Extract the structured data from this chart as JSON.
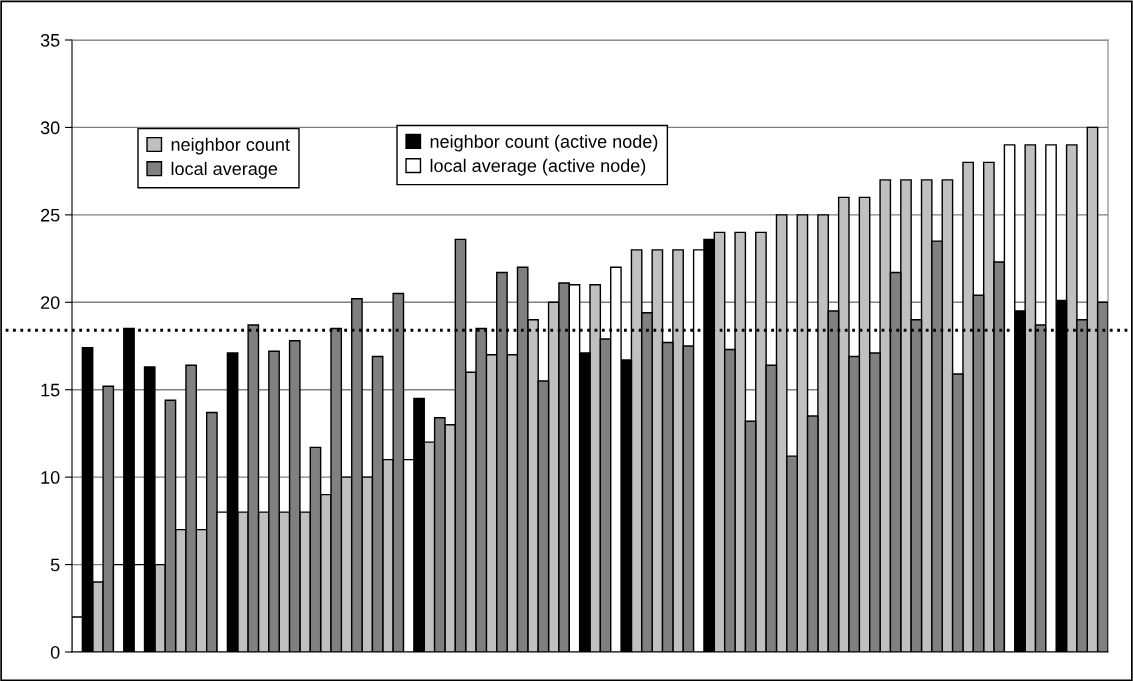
{
  "chart_data": {
    "type": "bar",
    "stacked": true,
    "categories": [
      null,
      null,
      null,
      null,
      null,
      null,
      null,
      null,
      null,
      null,
      null,
      null,
      null,
      null,
      null,
      null,
      null,
      null,
      null,
      null,
      null,
      null,
      null,
      null,
      null,
      null,
      null,
      null,
      null,
      null,
      null,
      null,
      null,
      null,
      null,
      null,
      null,
      null,
      null,
      null,
      null,
      null,
      null,
      null,
      null,
      null,
      null,
      null,
      null,
      null,
      null,
      null,
      null,
      null,
      null,
      null,
      null,
      null,
      null,
      null,
      null,
      null,
      null,
      null,
      null,
      null,
      null,
      null,
      null,
      null,
      null,
      null,
      null,
      null,
      null,
      null,
      null,
      null,
      null,
      null,
      null,
      null,
      null,
      null,
      null,
      null,
      null,
      null,
      null,
      null,
      null,
      null,
      null,
      null,
      null,
      null,
      null,
      null,
      null,
      null
    ],
    "series": [
      {
        "name": "neighbor count",
        "color": "#c0c0c0",
        "values": [
          null,
          null,
          4,
          null,
          null,
          null,
          null,
          null,
          5,
          null,
          7,
          null,
          7,
          null,
          null,
          null,
          8,
          null,
          8,
          null,
          8,
          null,
          8,
          null,
          9,
          null,
          10,
          null,
          10,
          null,
          11,
          null,
          null,
          null,
          12,
          null,
          13,
          null,
          16,
          null,
          17,
          null,
          17,
          null,
          19,
          null,
          20,
          null,
          null,
          null,
          21,
          null,
          null,
          null,
          23,
          null,
          23,
          null,
          23,
          null,
          null,
          null,
          24,
          null,
          24,
          null,
          24,
          null,
          25,
          null,
          25,
          null,
          25,
          null,
          26,
          null,
          26,
          null,
          27,
          null,
          27,
          null,
          27,
          null,
          27,
          null,
          28,
          null,
          28,
          null,
          null,
          null,
          29,
          null,
          null,
          null,
          29,
          null,
          30,
          null
        ]
      },
      {
        "name": "local average",
        "color": "#808080",
        "values": [
          null,
          null,
          null,
          15.2,
          null,
          null,
          null,
          null,
          null,
          14.4,
          null,
          16.4,
          null,
          13.7,
          null,
          null,
          null,
          18.7,
          null,
          17.2,
          null,
          17.8,
          null,
          11.7,
          null,
          18.5,
          null,
          20.2,
          null,
          16.9,
          null,
          20.5,
          null,
          null,
          null,
          13.4,
          null,
          23.6,
          null,
          18.5,
          null,
          21.7,
          null,
          22,
          null,
          15.5,
          null,
          21.1,
          null,
          null,
          null,
          17.9,
          null,
          null,
          null,
          19.4,
          null,
          17.7,
          null,
          17.5,
          null,
          null,
          null,
          17.3,
          null,
          13.2,
          null,
          16.4,
          null,
          11.2,
          null,
          13.5,
          null,
          19.5,
          null,
          16.9,
          null,
          17.1,
          null,
          21.7,
          null,
          19,
          null,
          23.5,
          null,
          15.9,
          null,
          20.4,
          null,
          22.3,
          null,
          null,
          null,
          18.7,
          null,
          null,
          null,
          19,
          null,
          20
        ]
      },
      {
        "name": "neighbor count (active node)",
        "color": "#000000",
        "values": [
          null,
          17.4,
          null,
          null,
          null,
          18.5,
          null,
          16.3,
          null,
          null,
          null,
          null,
          null,
          null,
          null,
          17.1,
          null,
          null,
          null,
          null,
          null,
          null,
          null,
          null,
          null,
          null,
          null,
          null,
          null,
          null,
          null,
          null,
          null,
          14.5,
          null,
          null,
          null,
          null,
          null,
          null,
          null,
          null,
          null,
          null,
          null,
          null,
          null,
          null,
          null,
          17.1,
          null,
          null,
          null,
          16.7,
          null,
          null,
          null,
          null,
          null,
          null,
          null,
          23.6,
          null,
          null,
          null,
          null,
          null,
          null,
          null,
          null,
          null,
          null,
          null,
          null,
          null,
          null,
          null,
          null,
          null,
          null,
          null,
          null,
          null,
          null,
          null,
          null,
          null,
          null,
          null,
          null,
          null,
          19.5,
          null,
          null,
          null,
          20.1,
          null,
          null,
          null,
          null
        ]
      },
      {
        "name": "local average (active node)",
        "color": "#ffffff",
        "values": [
          2,
          null,
          null,
          null,
          5,
          null,
          5,
          null,
          null,
          null,
          null,
          null,
          null,
          null,
          8,
          null,
          null,
          null,
          null,
          null,
          null,
          null,
          null,
          null,
          null,
          null,
          null,
          null,
          null,
          null,
          null,
          null,
          11,
          null,
          null,
          null,
          null,
          null,
          null,
          null,
          null,
          null,
          null,
          null,
          null,
          null,
          null,
          null,
          21,
          null,
          null,
          null,
          22,
          null,
          null,
          null,
          null,
          null,
          null,
          null,
          23,
          null,
          null,
          null,
          null,
          null,
          null,
          null,
          null,
          null,
          null,
          null,
          null,
          null,
          null,
          null,
          null,
          null,
          null,
          null,
          null,
          null,
          null,
          null,
          null,
          null,
          null,
          null,
          null,
          null,
          29,
          null,
          null,
          null,
          29,
          null,
          null,
          null,
          null,
          null
        ]
      }
    ],
    "ylim": [
      0,
      35
    ],
    "yticks": [
      0,
      5,
      10,
      15,
      20,
      25,
      30,
      35
    ],
    "grid": "y",
    "tick_labels": "y",
    "legend": "top left",
    "ref_lines": [
      {
        "axis": "y",
        "value": 18.4,
        "color": "#000000",
        "line_style": "dotted"
      }
    ]
  }
}
